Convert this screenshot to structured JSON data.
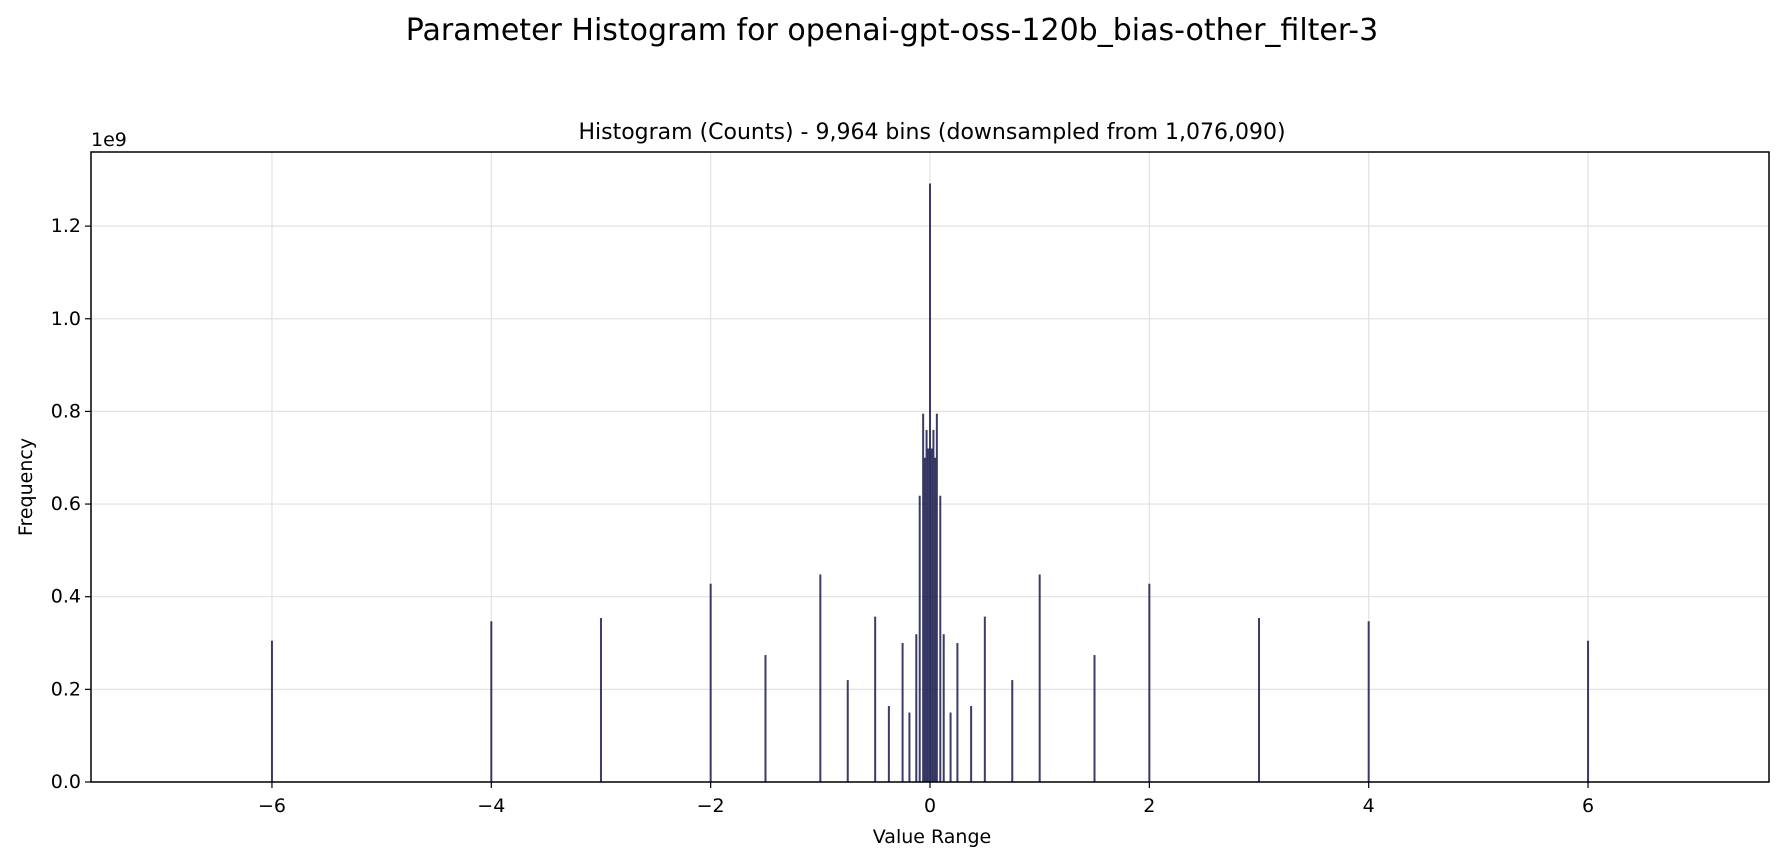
{
  "chart_data": {
    "type": "bar",
    "suptitle": "Parameter Histogram for openai-gpt-oss-120b_bias-other_filter-3",
    "title": "Histogram (Counts) - 9,964 bins (downsampled from 1,076,090)",
    "xlabel": "Value Range",
    "ylabel": "Frequency",
    "y_scale_label": "1e9",
    "y_multiplier": 1000000000,
    "xlim": [
      -7.65,
      7.65
    ],
    "ylim": [
      0,
      1.36
    ],
    "xticks": [
      -6,
      -4,
      -2,
      0,
      2,
      4,
      6
    ],
    "xtick_labels": [
      "−6",
      "−4",
      "−2",
      "0",
      "2",
      "4",
      "6"
    ],
    "yticks": [
      0.0,
      0.2,
      0.4,
      0.6,
      0.8,
      1.0,
      1.2
    ],
    "ytick_labels": [
      "0.0",
      "0.2",
      "0.4",
      "0.6",
      "0.8",
      "1.0",
      "1.2"
    ],
    "grid": true,
    "bar_color": "#1a1a4e",
    "bars": [
      {
        "x": -6.0,
        "y": 0.305
      },
      {
        "x": -4.0,
        "y": 0.347
      },
      {
        "x": -3.0,
        "y": 0.354
      },
      {
        "x": -2.0,
        "y": 0.428
      },
      {
        "x": -1.5,
        "y": 0.274
      },
      {
        "x": -1.0,
        "y": 0.448
      },
      {
        "x": -0.75,
        "y": 0.22
      },
      {
        "x": -0.5,
        "y": 0.357
      },
      {
        "x": -0.375,
        "y": 0.164
      },
      {
        "x": -0.25,
        "y": 0.3
      },
      {
        "x": -0.1875,
        "y": 0.15
      },
      {
        "x": -0.125,
        "y": 0.319
      },
      {
        "x": -0.09375,
        "y": 0.618
      },
      {
        "x": -0.0625,
        "y": 0.795
      },
      {
        "x": -0.046875,
        "y": 0.7
      },
      {
        "x": -0.03125,
        "y": 0.76
      },
      {
        "x": -0.015625,
        "y": 0.72
      },
      {
        "x": 0.0,
        "y": 1.292
      },
      {
        "x": 0.015625,
        "y": 0.72
      },
      {
        "x": 0.03125,
        "y": 0.76
      },
      {
        "x": 0.046875,
        "y": 0.7
      },
      {
        "x": 0.0625,
        "y": 0.795
      },
      {
        "x": 0.09375,
        "y": 0.618
      },
      {
        "x": 0.125,
        "y": 0.319
      },
      {
        "x": 0.1875,
        "y": 0.15
      },
      {
        "x": 0.25,
        "y": 0.3
      },
      {
        "x": 0.375,
        "y": 0.164
      },
      {
        "x": 0.5,
        "y": 0.357
      },
      {
        "x": 0.75,
        "y": 0.22
      },
      {
        "x": 1.0,
        "y": 0.448
      },
      {
        "x": 1.5,
        "y": 0.274
      },
      {
        "x": 2.0,
        "y": 0.428
      },
      {
        "x": 3.0,
        "y": 0.354
      },
      {
        "x": 4.0,
        "y": 0.347
      },
      {
        "x": 6.0,
        "y": 0.305
      }
    ]
  }
}
